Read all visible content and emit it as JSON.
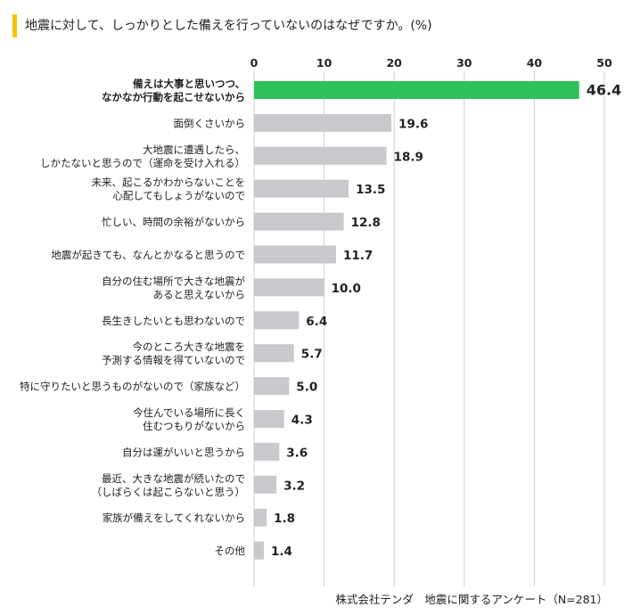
{
  "title": "地震に対して、しっかりとした備えを行っていないのはなぜですか。(%)",
  "source": "株式会社テンダ　地震に関するアンケート（N=281）",
  "colors": {
    "accent_bar": "#f5c400",
    "highlight": "#2ec05a",
    "bar": "#c9c9cd",
    "grid": "#cfcfcf"
  },
  "chart_data": {
    "type": "bar",
    "orientation": "horizontal",
    "title": "地震に対して、しっかりとした備えを行っていないのはなぜですか。(%)",
    "xlabel": "",
    "ylabel": "",
    "xlim": [
      0,
      50
    ],
    "ticks": [
      0,
      10,
      20,
      30,
      40,
      50
    ],
    "grid": true,
    "categories": [
      [
        "備えは大事と思いつつ、",
        "なかなか行動を起こせないから"
      ],
      [
        "面倒くさいから"
      ],
      [
        "大地震に遭遇したら、",
        "しかたないと思うので（運命を受け入れる）"
      ],
      [
        "未来、起こるかわからないことを",
        "心配してもしょうがないので"
      ],
      [
        "忙しい、時間の余裕がないから"
      ],
      [
        "地震が起きても、なんとかなると思うので"
      ],
      [
        "自分の住む場所で大きな地震が",
        "あると思えないから"
      ],
      [
        "長生きしたいとも思わないので"
      ],
      [
        "今のところ大きな地震を",
        "予測する情報を得ていないので"
      ],
      [
        "特に守りたいと思うものがないので（家族など）"
      ],
      [
        "今住んでいる場所に長く",
        "住むつもりがないから"
      ],
      [
        "自分は運がいいと思うから"
      ],
      [
        "最近、大きな地震が続いたので",
        "（しばらくは起こらないと思う）"
      ],
      [
        "家族が備えをしてくれないから"
      ],
      [
        "その他"
      ]
    ],
    "values": [
      46.4,
      19.6,
      18.9,
      13.5,
      12.8,
      11.7,
      10.0,
      6.4,
      5.7,
      5.0,
      4.3,
      3.6,
      3.2,
      1.8,
      1.4
    ],
    "value_labels": [
      "46.4",
      "19.6",
      "18.9",
      "13.5",
      "12.8",
      "11.7",
      "10.0",
      "6.4",
      "5.7",
      "5.0",
      "4.3",
      "3.6",
      "3.2",
      "1.8",
      "1.4"
    ],
    "highlight_index": 0
  }
}
